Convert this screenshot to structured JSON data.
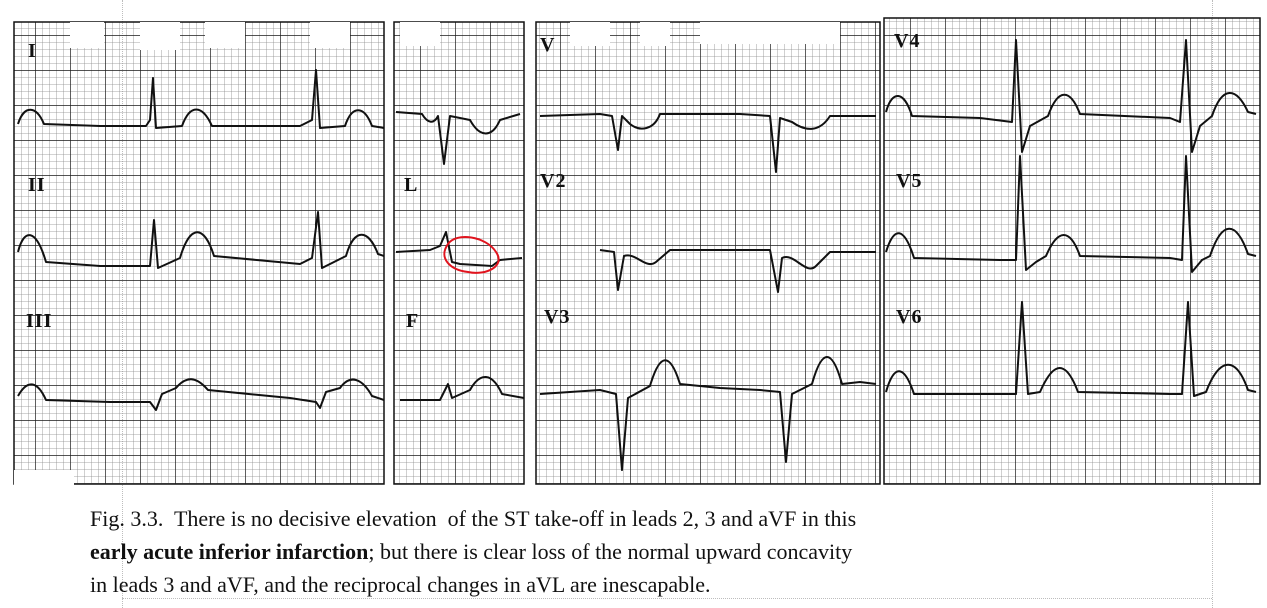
{
  "leads": {
    "i": "I",
    "ii": "II",
    "iii": "III",
    "avr": "",
    "avl": "L",
    "avf": "F",
    "v1": "V",
    "v2": "V2",
    "v3": "V3",
    "v4": "V4",
    "v5": "V5",
    "v6": "V6"
  },
  "caption": {
    "line1": "Fig. 3.3.  There is no decisive elevation  of the ST take-off in leads 2, 3 and aVF in this",
    "line2_bold": "early acute inferior infarction",
    "line2_rest": "; but there is clear loss of the normal upward concavity",
    "line3": "in leads 3 and aVF, and the reciprocal changes in aVL are inescapable."
  },
  "colors": {
    "grid_minor": "#8a8a8a",
    "grid_major": "#1a1a1a",
    "trace": "#111111",
    "annotation": "#e0141e"
  }
}
